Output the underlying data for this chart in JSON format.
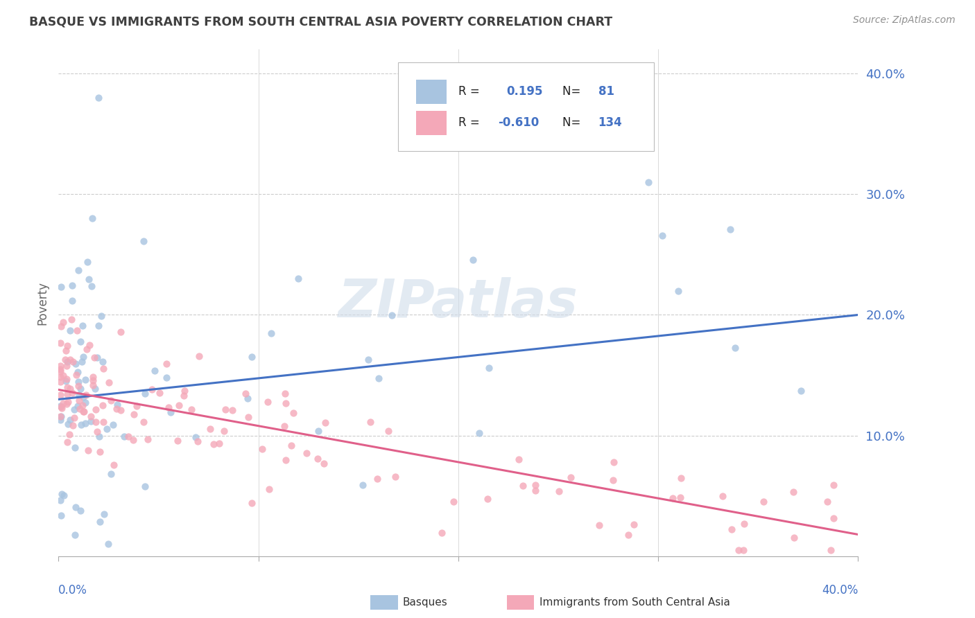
{
  "title": "BASQUE VS IMMIGRANTS FROM SOUTH CENTRAL ASIA POVERTY CORRELATION CHART",
  "source": "Source: ZipAtlas.com",
  "ylabel": "Poverty",
  "xlim": [
    0.0,
    0.4
  ],
  "ylim": [
    0.0,
    0.42
  ],
  "yticks": [
    0.1,
    0.2,
    0.3,
    0.4
  ],
  "ytick_labels": [
    "10.0%",
    "20.0%",
    "30.0%",
    "40.0%"
  ],
  "blue_R": 0.195,
  "blue_N": 81,
  "pink_R": -0.61,
  "pink_N": 134,
  "blue_color": "#a8c4e0",
  "pink_color": "#f4a8b8",
  "blue_line_color": "#4472c4",
  "pink_line_color": "#e0608a",
  "legend_label_blue": "Basques",
  "legend_label_pink": "Immigrants from South Central Asia",
  "watermark": "ZIPatlas",
  "background_color": "#ffffff",
  "grid_color": "#cccccc",
  "title_color": "#404040",
  "source_color": "#909090",
  "blue_line_start_y": 0.13,
  "blue_line_end_y": 0.2,
  "pink_line_start_y": 0.138,
  "pink_line_end_y": 0.018
}
